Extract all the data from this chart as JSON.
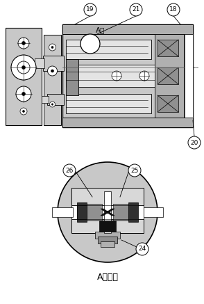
{
  "bg_color": "#ffffff",
  "lc": "#000000",
  "gray1": "#c8c8c8",
  "gray2": "#b0b0b0",
  "gray3": "#909090",
  "gray4": "#d8d8d8",
  "gray5": "#e4e4e4",
  "title_bottom": "A部詳細",
  "label_apart": "A部",
  "fig_width": 2.94,
  "fig_height": 4.37,
  "dpi": 100
}
